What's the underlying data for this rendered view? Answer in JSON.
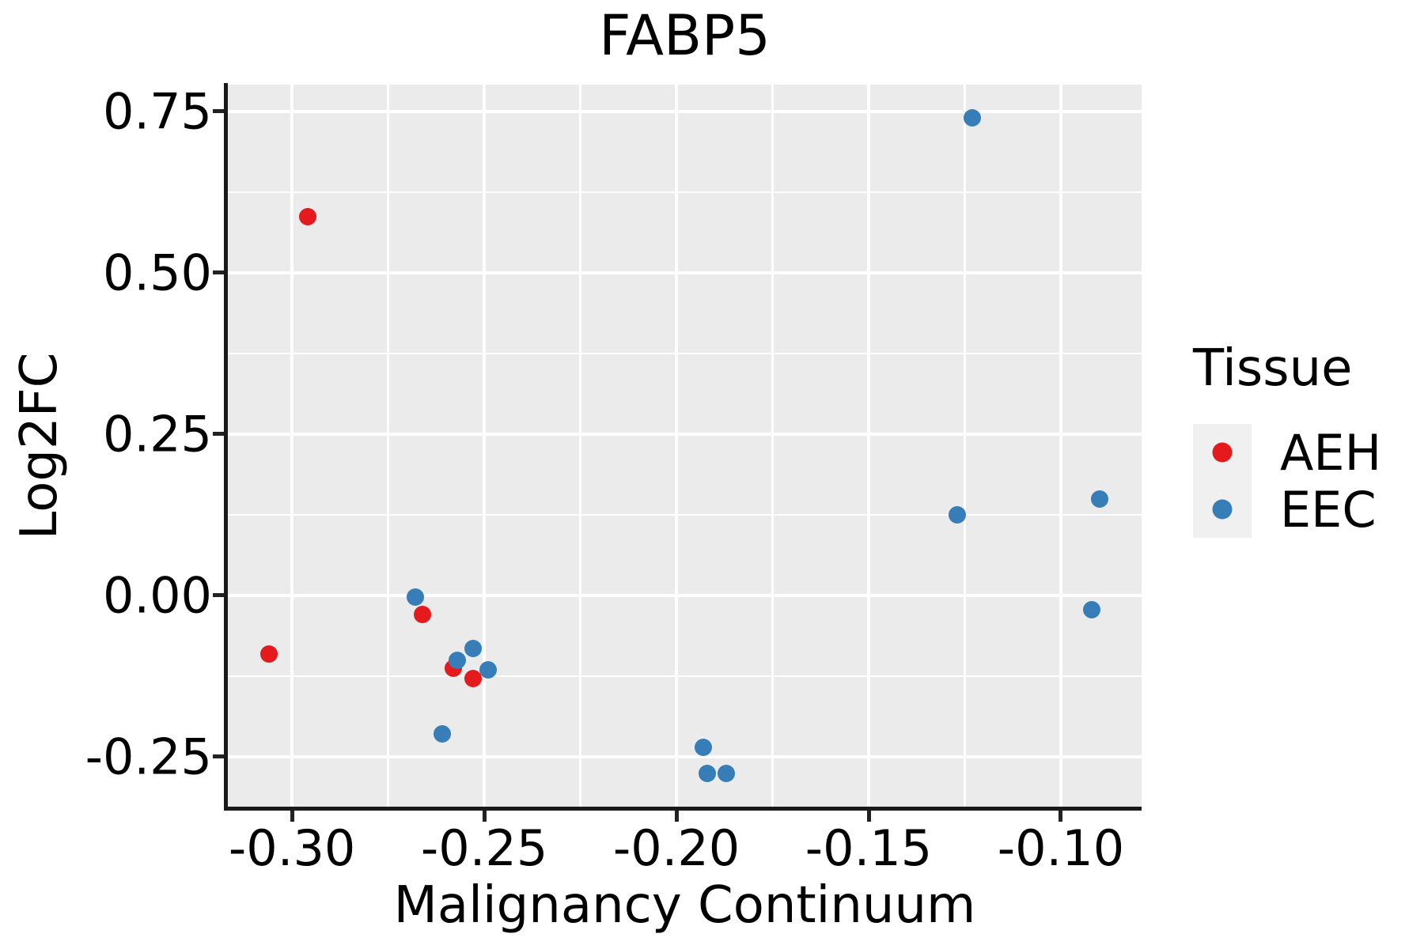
{
  "chart_data": {
    "type": "scatter",
    "title": "FABP5",
    "xlabel": "Malignancy Continuum",
    "ylabel": "Log2FC",
    "xlim": [
      -0.3167,
      -0.079
    ],
    "ylim": [
      -0.3297,
      0.7916
    ],
    "x_major_ticks": [
      -0.3,
      -0.25,
      -0.2,
      -0.15,
      -0.1
    ],
    "x_tick_labels": [
      "-0.30",
      "-0.25",
      "-0.20",
      "-0.15",
      "-0.10"
    ],
    "x_minor_ticks": [
      -0.275,
      -0.225,
      -0.175,
      -0.125
    ],
    "y_major_ticks": [
      0.75,
      0.5,
      0.25,
      0.0,
      -0.25
    ],
    "y_tick_labels": [
      "0.75",
      "0.50",
      "0.25",
      "0.00",
      "-0.25"
    ],
    "y_minor_ticks": [
      0.625,
      0.375,
      0.125,
      -0.125
    ],
    "grid": true,
    "legend_position": "right",
    "series": [
      {
        "name": "AEH",
        "color": "#E41A1C",
        "points": [
          [
            -0.296,
            0.587
          ],
          [
            -0.306,
            -0.091
          ],
          [
            -0.266,
            -0.029
          ],
          [
            -0.258,
            -0.113
          ],
          [
            -0.253,
            -0.129
          ]
        ]
      },
      {
        "name": "EEC",
        "color": "#377EB8",
        "points": [
          [
            -0.123,
            0.74
          ],
          [
            -0.268,
            -0.002
          ],
          [
            -0.253,
            -0.082
          ],
          [
            -0.257,
            -0.1
          ],
          [
            -0.249,
            -0.115
          ],
          [
            -0.261,
            -0.214
          ],
          [
            -0.193,
            -0.235
          ],
          [
            -0.192,
            -0.276
          ],
          [
            -0.187,
            -0.276
          ],
          [
            -0.127,
            0.125
          ],
          [
            -0.09,
            0.15
          ],
          [
            -0.092,
            -0.022
          ]
        ]
      }
    ]
  },
  "legend": {
    "title": "Tissue",
    "items": [
      {
        "label": "AEH",
        "color": "#E41A1C"
      },
      {
        "label": "EEC",
        "color": "#377EB8"
      }
    ]
  },
  "colors": {
    "panel_bg": "#EBEBEB",
    "grid": "#FFFFFF",
    "axis": "#1a1a1a",
    "text": "#000000",
    "legend_key_bg": "#F0F0F0"
  }
}
